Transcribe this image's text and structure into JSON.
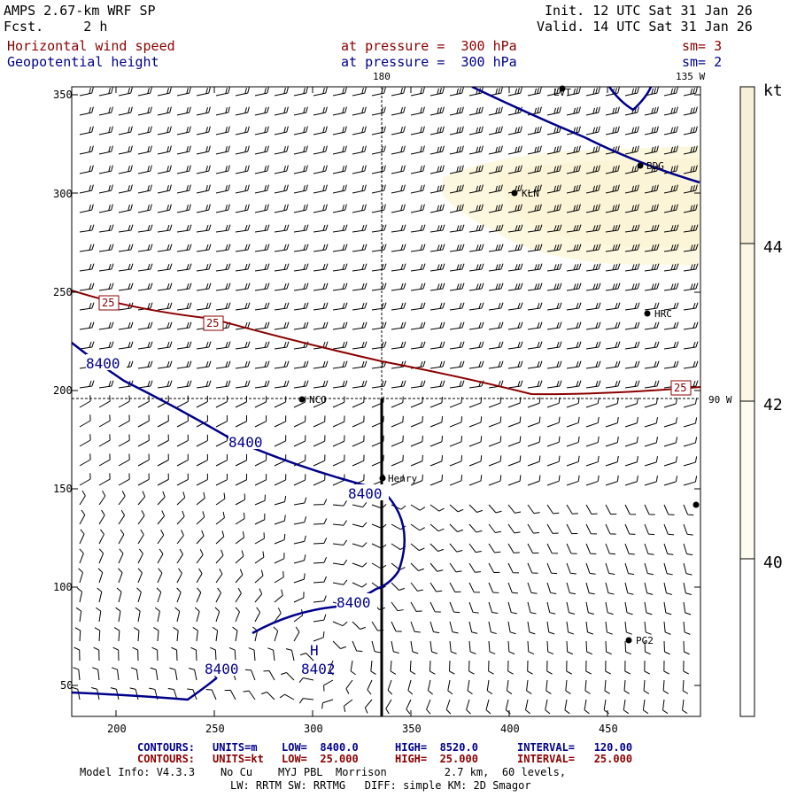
{
  "header": {
    "model": "AMPS 2.67-km WRF SP",
    "fcst": "Fcst.     2 h",
    "init": "Init. 12 UTC Sat 31 Jan 26",
    "valid": "Valid. 14 UTC Sat 31 Jan 26",
    "field1": "Horizontal wind speed",
    "field1_level": "at pressure =  300 hPa",
    "field1_sm": "sm= 3",
    "field2": "Geopotential height",
    "field2_level": "at pressure =  300 hPa",
    "field2_sm": "sm= 2"
  },
  "map": {
    "lon_top_left": "180",
    "lon_top_right": "135 W",
    "lon_right": "90 W",
    "y_ticks": [
      "350",
      "300",
      "250",
      "200",
      "150",
      "100",
      "50"
    ],
    "x_ticks": [
      "200",
      "250",
      "300",
      "350",
      "400",
      "450"
    ],
    "stations": [
      {
        "name": "LVT"
      },
      {
        "name": "BDG"
      },
      {
        "name": "KLN"
      },
      {
        "name": "HRC"
      },
      {
        "name": "NCO"
      },
      {
        "name": "Henry"
      },
      {
        "name": "PG2"
      },
      {
        "name": ""
      }
    ],
    "height_labels": [
      "8400",
      "8400",
      "8400",
      "8400",
      "8400"
    ],
    "high_marker": "H",
    "high_value": "8402",
    "wind_labels": [
      "25",
      "25",
      "25"
    ]
  },
  "colorbar": {
    "unit": "kt",
    "ticks": [
      "44",
      "42",
      "40"
    ],
    "colors": {
      "top": "#f7efd8",
      "mid": "#fcf7e4",
      "low": "#fefcf0",
      "bottom": "#ffffff"
    }
  },
  "footer": {
    "contours1_label": "CONTOURS:",
    "contours1_units": "UNITS=m",
    "contours1_low": "LOW=  8400.0",
    "contours1_high": "HIGH=  8520.0",
    "contours1_interval": "INTERVAL=   120.00",
    "contours2_label": "CONTOURS:",
    "contours2_units": "UNITS=kt",
    "contours2_low": "LOW=  25.000",
    "contours2_high": "HIGH=  25.000",
    "contours2_interval": "INTERVAL=   25.000",
    "model_info": "Model Info: V4.3.3    No Cu    MYJ PBL  Morrison         2.7 km,  60 levels,",
    "model_info2": "LW: RRTM SW: RRTMG   DIFF: simple KM: 2D Smagor"
  },
  "colors": {
    "red": "#8b0000",
    "blue": "#00008b",
    "yellow": "#fcf7dc"
  }
}
